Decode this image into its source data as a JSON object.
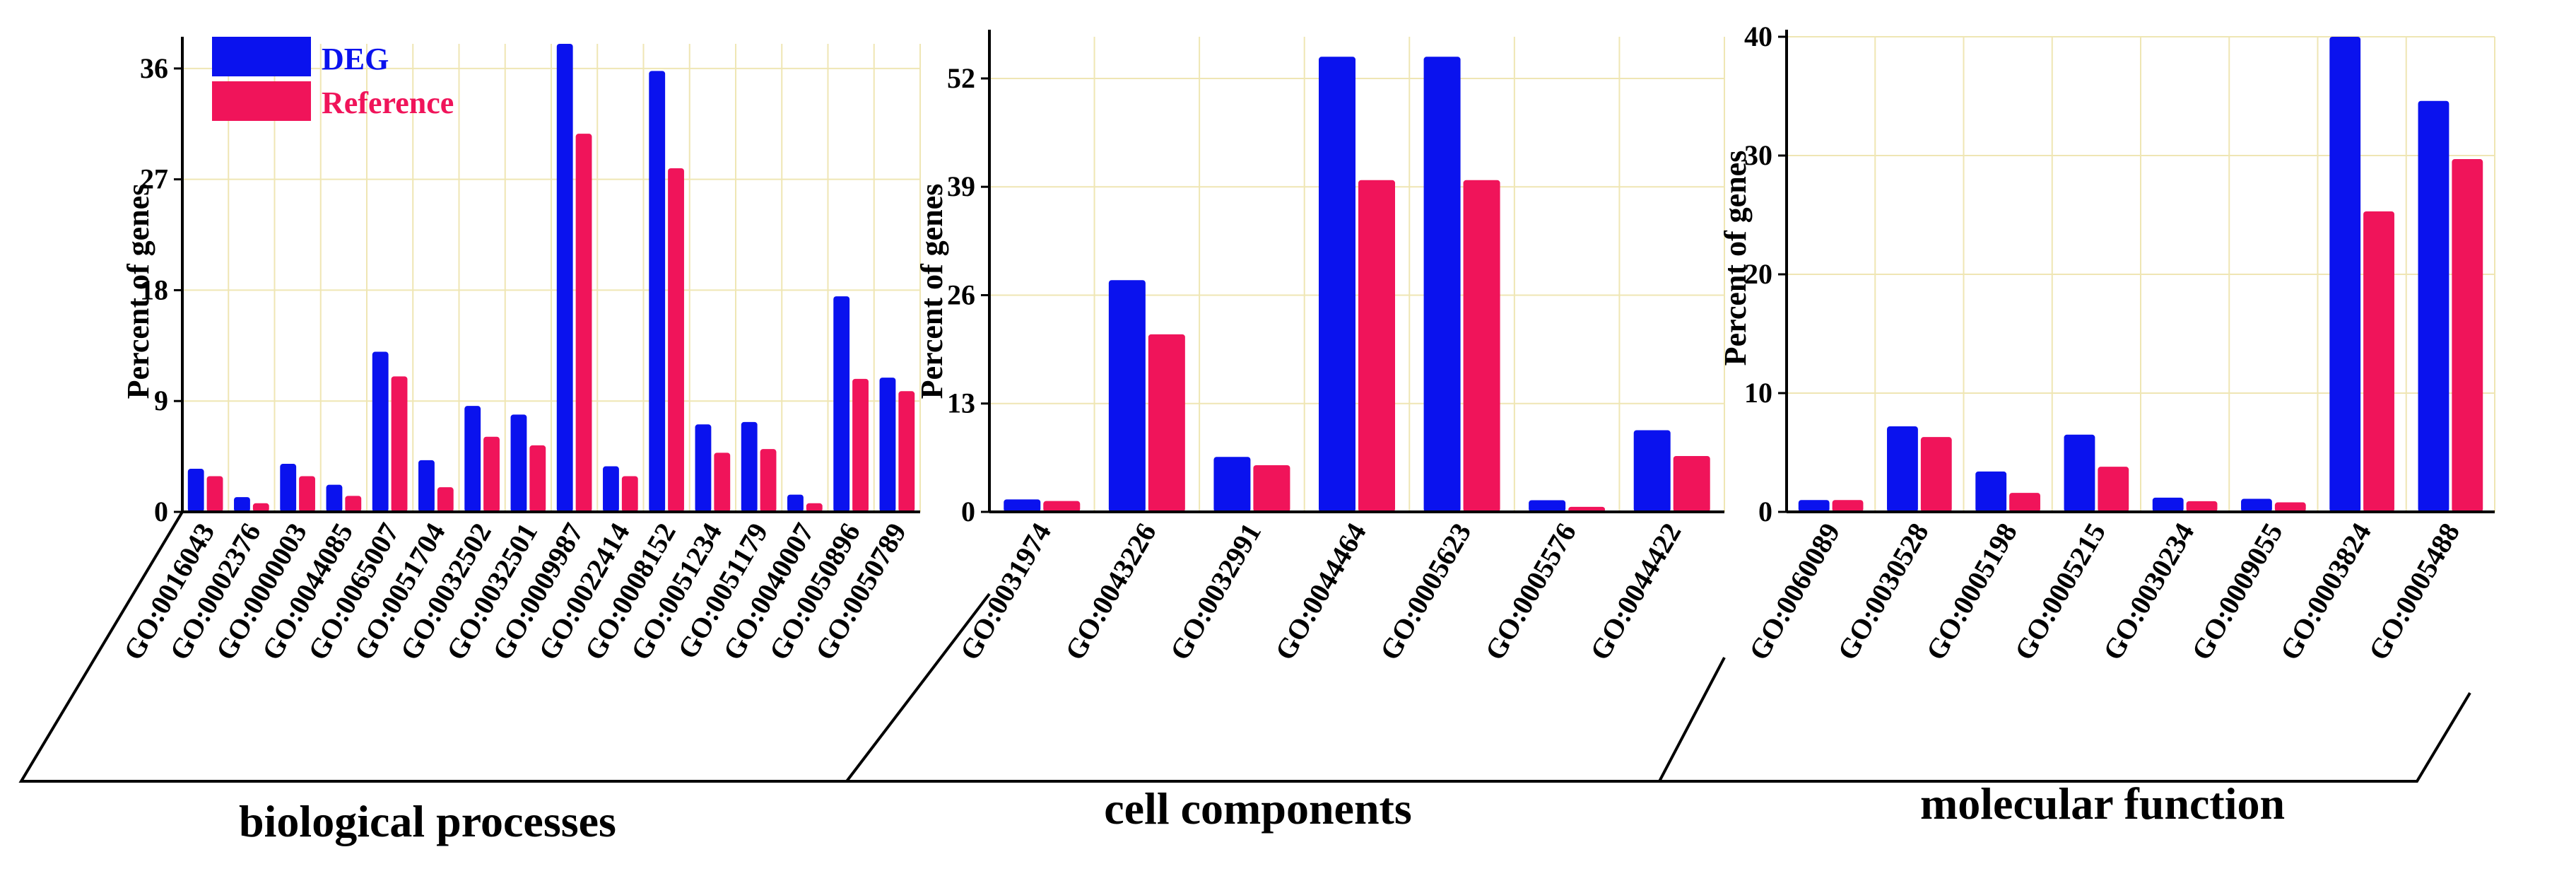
{
  "legend": {
    "items": [
      "DEG",
      "Reference"
    ]
  },
  "colors": {
    "deg": "#0a12ee",
    "reference": "#f0145a"
  },
  "chart_data": [
    {
      "type": "bar",
      "title": "biological processes",
      "ylabel": "Percent of genes",
      "ylim": [
        0,
        38
      ],
      "yticks": [
        0,
        9,
        18,
        27,
        36
      ],
      "categories": [
        "GO:0016043",
        "GO:0002376",
        "GO:0000003",
        "GO:0044085",
        "GO:0065007",
        "GO:0051704",
        "GO:0032502",
        "GO:0032501",
        "GO:0009987",
        "GO:0022414",
        "GO:0008152",
        "GO:0051234",
        "GO:0051179",
        "GO:0040007",
        "GO:0050896",
        "GO:0050789"
      ],
      "series": [
        {
          "name": "DEG",
          "values": [
            3.5,
            1.2,
            3.9,
            2.2,
            13.0,
            4.2,
            8.6,
            7.9,
            38.0,
            3.7,
            35.8,
            7.1,
            7.3,
            1.4,
            17.5,
            10.9
          ]
        },
        {
          "name": "Reference",
          "values": [
            2.9,
            0.7,
            2.9,
            1.3,
            11.0,
            2.0,
            6.1,
            5.4,
            30.7,
            2.9,
            27.9,
            4.8,
            5.1,
            0.7,
            10.8,
            9.8
          ]
        }
      ]
    },
    {
      "type": "bar",
      "title": "cell components",
      "ylabel": "Percent of genes",
      "ylim": [
        0,
        57
      ],
      "yticks": [
        0,
        13,
        26,
        39,
        52
      ],
      "categories": [
        "GO:0031974",
        "GO:0043226",
        "GO:0032991",
        "GO:0044464",
        "GO:0005623",
        "GO:0005576",
        "GO:0044422"
      ],
      "series": [
        {
          "name": "DEG",
          "values": [
            1.5,
            27.8,
            6.6,
            54.6,
            54.6,
            1.4,
            9.8
          ]
        },
        {
          "name": "Reference",
          "values": [
            1.3,
            21.3,
            5.6,
            39.8,
            39.8,
            0.6,
            6.7
          ]
        }
      ]
    },
    {
      "type": "bar",
      "title": "molecular function",
      "ylabel": "Percent of genes",
      "ylim": [
        0,
        40
      ],
      "yticks": [
        0,
        10,
        20,
        30,
        40
      ],
      "categories": [
        "GO:0060089",
        "GO:0030528",
        "GO:0005198",
        "GO:0005215",
        "GO:0030234",
        "GO:0009055",
        "GO:0003824",
        "GO:0005488"
      ],
      "series": [
        {
          "name": "DEG",
          "values": [
            1.0,
            7.2,
            3.4,
            6.5,
            1.2,
            1.1,
            40.0,
            34.6
          ]
        },
        {
          "name": "Reference",
          "values": [
            1.0,
            6.3,
            1.6,
            3.8,
            0.9,
            0.8,
            25.3,
            29.7
          ]
        }
      ]
    }
  ]
}
